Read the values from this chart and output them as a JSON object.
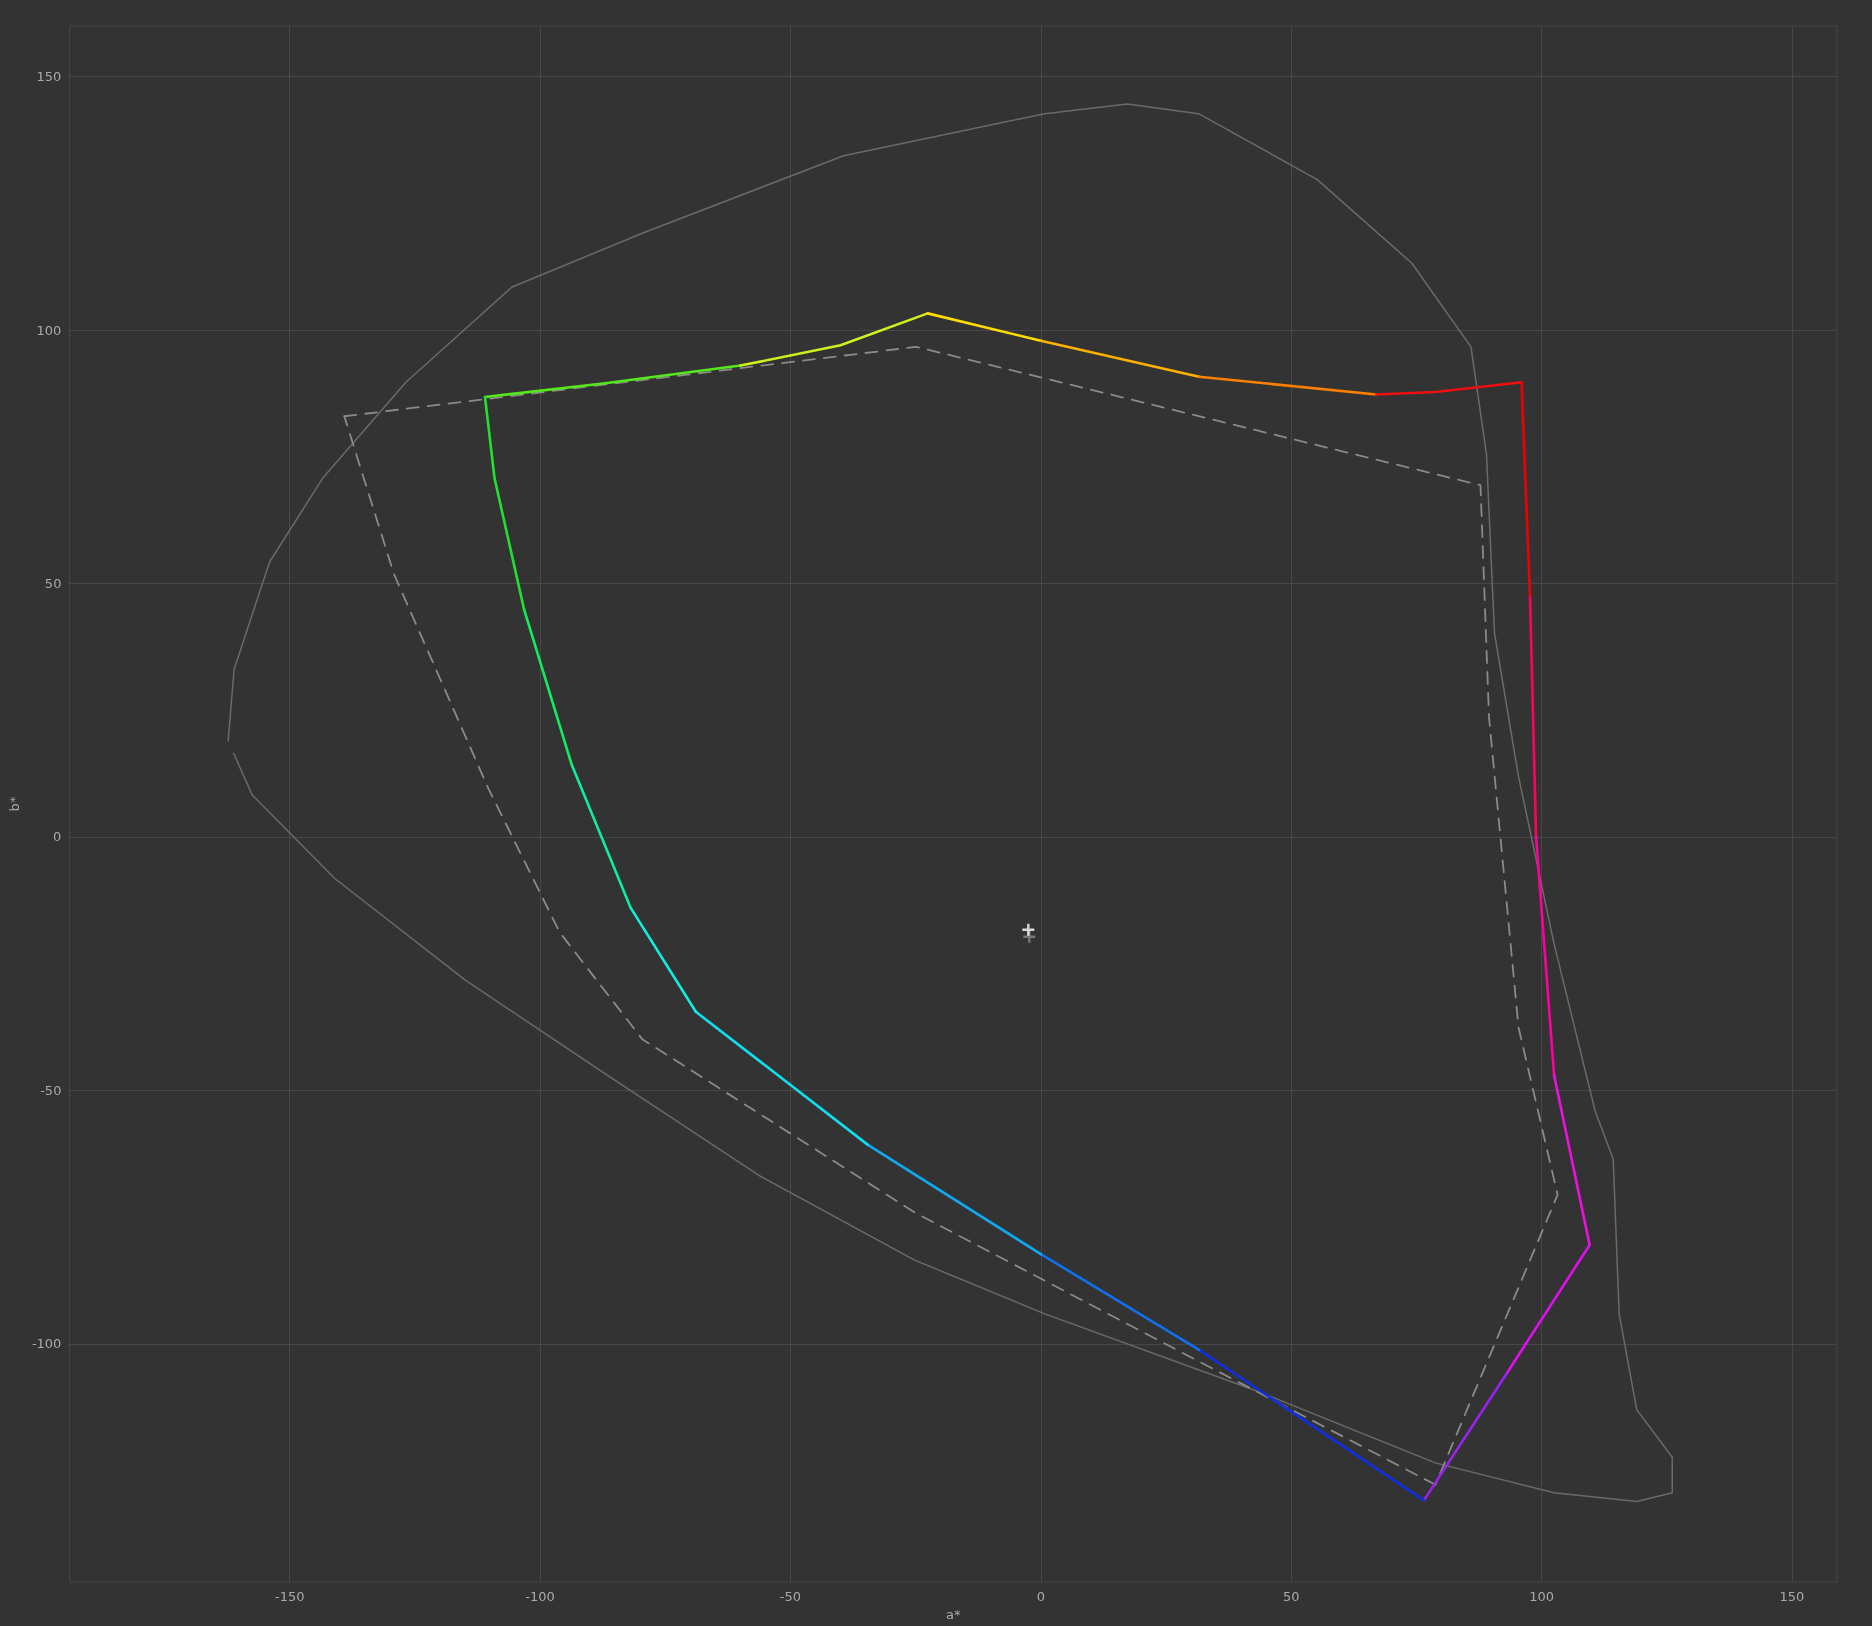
{
  "chart_data": {
    "type": "line",
    "xlabel": "a*",
    "ylabel": "b*",
    "xlim": [
      -194,
      159
    ],
    "ylim": [
      -147,
      160
    ],
    "xticks": [
      -150,
      -100,
      -50,
      0,
      50,
      100,
      150
    ],
    "yticks": [
      -100,
      -50,
      0,
      50,
      100,
      150
    ],
    "grid": true,
    "marker": "none",
    "line_style": "solid",
    "series": [
      {
        "color": "#6a6a6a",
        "x": [
          -162.3,
          -161.1,
          -154,
          -143.4,
          -126.8,
          -105.6,
          -79.6,
          -39.4,
          0.8,
          17.3,
          31.5,
          55.2,
          74.1,
          85.9,
          89,
          90.6,
          95.4,
          102.5,
          110.7,
          114.3,
          115.5,
          119,
          126.1,
          126.1,
          119,
          102.5,
          78.8,
          43.4,
          0.8,
          -25.2,
          -55.9,
          -86.6,
          -115,
          -141,
          -157.5,
          -161.2
        ],
        "values": [
          18.9,
          33.1,
          54.3,
          70.8,
          89.7,
          108.5,
          119.1,
          134.4,
          142.7,
          144.6,
          142.7,
          129.7,
          113.2,
          96.7,
          75.5,
          40.2,
          11.9,
          -21.1,
          -54.1,
          -63.5,
          -94.1,
          -113,
          -122.4,
          -129.4,
          -131.1,
          -129.4,
          -123.5,
          -109.4,
          -94.1,
          -83.5,
          -67,
          -47,
          -28.2,
          -8.2,
          8.3,
          16.5
        ]
      },
      {
        "color": "#8a8a8a",
        "line_style": "dashed",
        "x": [
          -139.1,
          -24.9,
          87.8,
          89.5,
          95.4,
          103.2,
          78.8
        ],
        "values": [
          83,
          96.7,
          69.4,
          23.7,
          -37.6,
          -70.6,
          -127.8
        ]
      },
      {
        "color": "#8a8a8a",
        "line_style": "dashed",
        "x": [
          78.8,
          31.6,
          -25.2,
          -79.6,
          -96.1,
          -110.3,
          -129.2,
          -139.1
        ],
        "values": [
          -127.8,
          -103.5,
          -74.1,
          -39.9,
          -18.8,
          9.5,
          51.9,
          83
        ]
      },
      {
        "color": "#55e81a",
        "x": [
          -111,
          -87,
          -60
        ],
        "values": [
          86.8,
          89.5,
          93
        ]
      },
      {
        "color": "#d0ee20",
        "x": [
          -60,
          -40,
          -22.6
        ],
        "values": [
          93,
          97,
          103.3
        ]
      },
      {
        "color": "#ffdd00",
        "x": [
          -22.6,
          0
        ],
        "values": [
          103.3,
          97.9
        ]
      },
      {
        "color": "#ffb000",
        "x": [
          0,
          31.6
        ],
        "values": [
          97.9,
          90.8
        ]
      },
      {
        "color": "#ff8000",
        "x": [
          31.6,
          67
        ],
        "values": [
          90.8,
          87.3
        ]
      },
      {
        "color": "#ee1010",
        "x": [
          67,
          78.8,
          96
        ],
        "values": [
          87.3,
          87.8,
          89.7
        ]
      },
      {
        "color": "#ee0000",
        "x": [
          96,
          97.7
        ],
        "values": [
          89.7,
          47.3
        ]
      },
      {
        "color": "#ff0060",
        "x": [
          97.7,
          98.9
        ],
        "values": [
          47.3,
          0.1
        ]
      },
      {
        "color": "#ff00a0",
        "x": [
          98.9,
          102.5
        ],
        "values": [
          0.1,
          -47
        ]
      },
      {
        "color": "#ee10dd",
        "x": [
          102.5,
          109.6
        ],
        "values": [
          -47,
          -80.5
        ]
      },
      {
        "color": "#dd11ee",
        "x": [
          109.6,
          93
        ],
        "values": [
          -80.5,
          -105.9
        ]
      },
      {
        "color": "#9922ee",
        "x": [
          93,
          76.5
        ],
        "values": [
          -105.9,
          -130.9
        ]
      },
      {
        "color": "#1030e0",
        "x": [
          76.5,
          31.6
        ],
        "values": [
          -130.9,
          -101.2
        ]
      },
      {
        "color": "#1070ee",
        "x": [
          31.6,
          0
        ],
        "values": [
          -101.2,
          -82.3
        ]
      },
      {
        "color": "#10a8f0",
        "x": [
          0,
          -34.6
        ],
        "values": [
          -82.3,
          -60.7
        ]
      },
      {
        "color": "#10ddee",
        "x": [
          -34.6,
          -68.9
        ],
        "values": [
          -60.7,
          -34.5
        ]
      },
      {
        "color": "#10eedd",
        "x": [
          -68.9,
          -81.9
        ],
        "values": [
          -34.5,
          -14
        ]
      },
      {
        "color": "#10ee99",
        "x": [
          -81.9,
          -93.7
        ],
        "values": [
          -14,
          14.3
        ]
      },
      {
        "color": "#10ee60",
        "x": [
          -93.7,
          -103.2
        ],
        "values": [
          14.3,
          44.9
        ]
      },
      {
        "color": "#20e030",
        "x": [
          -103.2,
          -109.1,
          -111
        ],
        "values": [
          44.9,
          70.8,
          86.8
        ]
      },
      {
        "type": "scatter",
        "marker": "cross",
        "color": "#888888",
        "x": [
          -2.3
        ],
        "values": [
          -19.7
        ]
      },
      {
        "type": "scatter",
        "marker": "cross",
        "color": "#ffffff",
        "x": [
          -2.5
        ],
        "values": [
          -18.3
        ]
      }
    ]
  }
}
